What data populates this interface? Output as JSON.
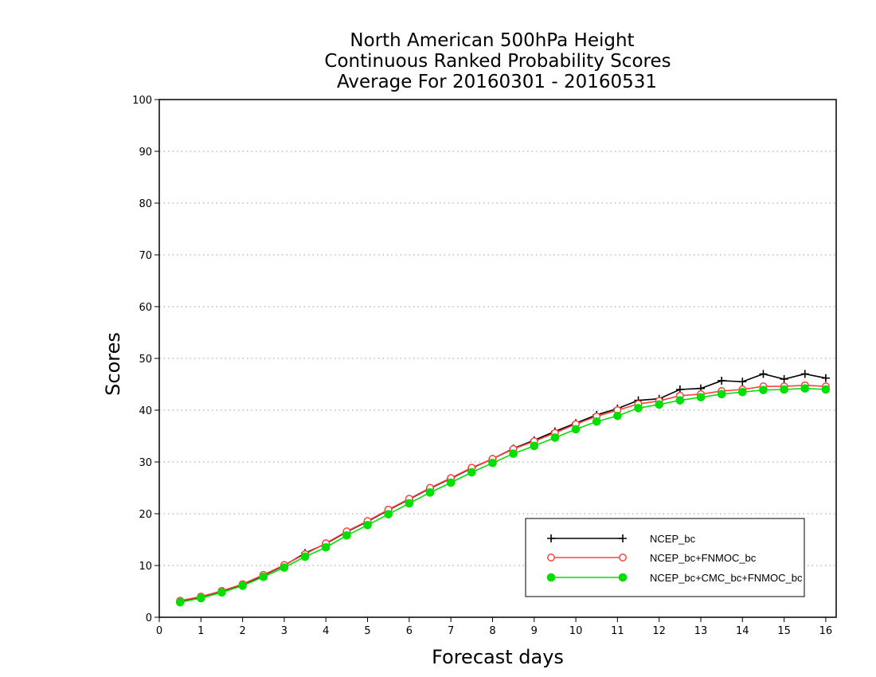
{
  "chart_data": {
    "type": "line",
    "title_lines": [
      "North American 500hPa Height",
      "Continuous Ranked Probability Scores",
      "Average For 20160301 - 20160531"
    ],
    "xlabel": "Forecast days",
    "ylabel": "Scores",
    "xlim": [
      0,
      16.25
    ],
    "ylim": [
      0,
      100
    ],
    "x_ticks": [
      "0",
      "1",
      "2",
      "3",
      "4",
      "5",
      "6",
      "7",
      "8",
      "9",
      "10",
      "11",
      "12",
      "13",
      "14",
      "15",
      "16"
    ],
    "y_ticks": [
      "0",
      "10",
      "20",
      "30",
      "40",
      "50",
      "60",
      "70",
      "80",
      "90",
      "100"
    ],
    "grid": "horizontal dotted",
    "legend_position": "bottom-right",
    "x": [
      0.5,
      1,
      1.5,
      2,
      2.5,
      3,
      3.5,
      4,
      4.5,
      5,
      5.5,
      6,
      6.5,
      7,
      7.5,
      8,
      8.5,
      9,
      9.5,
      10,
      10.5,
      11,
      11.5,
      12,
      12.5,
      13,
      13.5,
      14,
      14.5,
      15,
      15.5,
      16
    ],
    "series": [
      {
        "name": "NCEP_bc",
        "color": "#000000",
        "marker": "plus",
        "values": [
          3.0,
          3.9,
          5.0,
          6.3,
          8.1,
          10.0,
          12.4,
          14.2,
          16.5,
          18.5,
          20.7,
          22.8,
          24.9,
          26.8,
          28.8,
          30.6,
          32.6,
          34.2,
          35.9,
          37.5,
          39.1,
          40.3,
          41.9,
          42.2,
          44.0,
          44.2,
          45.7,
          45.5,
          47.0,
          46.0,
          47.0,
          46.2
        ]
      },
      {
        "name": "NCEP_bc+FNMOC_bc",
        "color": "#ff4040",
        "marker": "open-circle",
        "values": [
          3.2,
          4.0,
          5.1,
          6.4,
          8.2,
          10.1,
          12.2,
          14.3,
          16.6,
          18.6,
          20.8,
          22.9,
          25.0,
          26.9,
          28.9,
          30.6,
          32.5,
          34.0,
          35.6,
          37.3,
          38.8,
          40.0,
          41.2,
          41.8,
          42.8,
          43.1,
          43.7,
          44.0,
          44.6,
          44.6,
          44.8,
          44.6
        ]
      },
      {
        "name": "NCEP_bc+CMC_bc+FNMOC_bc",
        "color": "#00e000",
        "marker": "filled-circle",
        "values": [
          2.9,
          3.7,
          4.8,
          6.1,
          7.8,
          9.6,
          11.7,
          13.5,
          15.8,
          17.8,
          19.9,
          22.0,
          24.1,
          26.0,
          28.0,
          29.8,
          31.6,
          33.1,
          34.7,
          36.3,
          37.8,
          38.9,
          40.4,
          41.1,
          41.9,
          42.5,
          43.1,
          43.5,
          43.9,
          44.0,
          44.2,
          44.0
        ]
      }
    ]
  }
}
